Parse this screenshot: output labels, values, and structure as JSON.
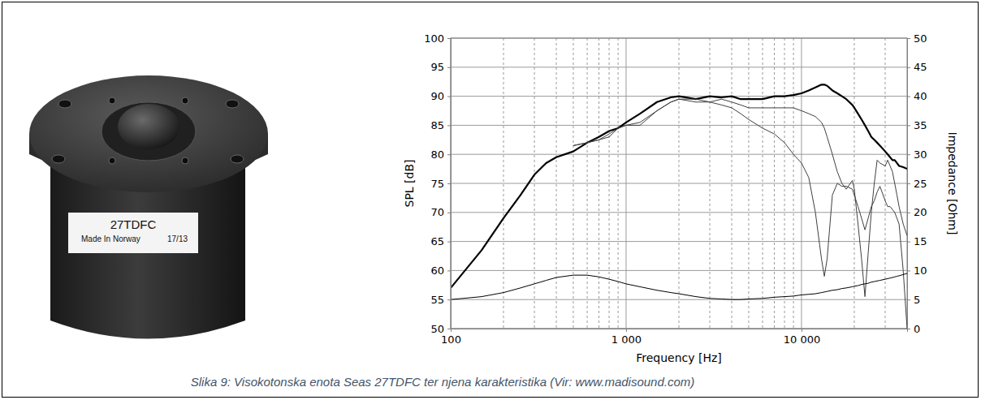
{
  "chart_data": {
    "type": "line",
    "xlabel": "Frequency [Hz]",
    "ylabel": "SPL [dB]",
    "y2label": "Impedance [Ohm]",
    "log": "x",
    "grid": true,
    "xlim": [
      100,
      40000
    ],
    "xticks": [
      100,
      {
        "value": 1000,
        "label": "1 000"
      },
      {
        "value": 10000,
        "label": "10 000"
      }
    ],
    "x_minor_grid": [
      200,
      300,
      400,
      500,
      600,
      700,
      800,
      900,
      2000,
      3000,
      4000,
      5000,
      6000,
      7000,
      8000,
      9000,
      20000,
      30000
    ],
    "ylim": [
      50,
      100
    ],
    "yticks": [
      50,
      55,
      60,
      65,
      70,
      75,
      80,
      85,
      90,
      95,
      100
    ],
    "y2lim": [
      0,
      50
    ],
    "y2ticks": [
      0,
      5,
      10,
      15,
      20,
      25,
      30,
      35,
      40,
      45,
      50
    ],
    "x": [
      100,
      150,
      200,
      250,
      300,
      350,
      400,
      500,
      600,
      700,
      800,
      900,
      1000,
      1200,
      1500,
      1800,
      2000,
      2500,
      3000,
      3500,
      4000,
      4500,
      5000,
      6000,
      7000,
      8000,
      9000,
      10000,
      11000,
      12000,
      13000,
      13500,
      14000,
      15000,
      16000,
      17000,
      18000,
      19500,
      20000,
      21000,
      22000,
      23000,
      24000,
      25000,
      26000,
      27000,
      28000,
      30000,
      31000,
      32000,
      33000,
      34000,
      35000,
      36000,
      38000,
      40000
    ],
    "series": [
      {
        "color": "#000000",
        "line_style": "thick",
        "values": [
          57,
          63.5,
          69,
          73,
          76.5,
          78.5,
          79.5,
          80.5,
          82,
          83,
          84,
          84.5,
          85.5,
          87,
          89,
          89.8,
          90,
          89.5,
          90,
          89.8,
          90,
          89.5,
          89.5,
          89.5,
          90,
          90,
          90.2,
          90.5,
          91,
          91.5,
          92,
          92,
          91.8,
          91,
          90.5,
          90,
          89.5,
          88.5,
          88,
          87,
          86,
          85,
          84,
          83,
          82.5,
          82,
          81.5,
          80.5,
          80,
          79.5,
          79,
          79,
          78.5,
          78,
          77.8,
          77.5
        ]
      },
      {
        "color": "#404040",
        "line_style": "thin",
        "values": [
          null,
          null,
          null,
          null,
          null,
          null,
          null,
          81.5,
          82,
          82.5,
          83,
          84.5,
          85,
          85,
          87.5,
          89,
          89.5,
          89.5,
          89,
          89.5,
          89,
          88.5,
          88,
          88,
          88,
          88,
          88,
          87.5,
          87,
          86.5,
          85.5,
          84.5,
          83,
          80,
          77,
          75,
          74,
          75.5,
          74,
          68,
          62,
          55.5,
          63,
          70,
          75,
          79,
          78.5,
          78,
          79,
          78,
          77,
          75,
          73,
          71,
          68,
          66
        ]
      },
      {
        "color": "#404040",
        "line_style": "thin",
        "values": [
          null,
          null,
          null,
          null,
          null,
          null,
          null,
          81.5,
          82,
          82.5,
          83.5,
          84.5,
          85,
          85.5,
          87.5,
          89,
          89.5,
          89,
          89,
          88.5,
          88,
          87,
          86,
          84.5,
          83.5,
          82,
          80,
          78.5,
          76,
          70,
          62,
          59,
          62,
          73,
          75,
          74.5,
          74.5,
          74,
          73,
          71,
          69,
          67,
          69,
          71,
          72,
          73.5,
          74.5,
          72,
          71,
          71,
          70.5,
          70,
          69,
          68,
          60,
          50
        ]
      },
      {
        "color": "#000000",
        "line_style": "thin",
        "axis": "y2",
        "values": [
          5,
          5.5,
          6.2,
          7,
          7.7,
          8.3,
          8.8,
          9.2,
          9.2,
          8.9,
          8.5,
          8.1,
          7.7,
          7.2,
          6.6,
          6.2,
          6,
          5.5,
          5.2,
          5.1,
          5,
          5,
          5.1,
          5.2,
          5.4,
          5.5,
          5.6,
          5.8,
          5.9,
          6,
          6.2,
          6.3,
          6.4,
          6.6,
          6.7,
          6.9,
          7,
          7.2,
          7.3,
          7.4,
          7.6,
          7.7,
          7.8,
          8,
          8.1,
          8.2,
          8.3,
          8.5,
          8.6,
          8.7,
          8.8,
          8.9,
          9,
          9.1,
          9.3,
          9.5
        ]
      }
    ]
  },
  "product_label": {
    "model": "27TDFC",
    "origin": "Made In Norway",
    "code": "17/13"
  },
  "caption": "Slika 9: Visokotonska enota Seas 27TDFC ter njena karakteristika (Vir: www.madisound.com)"
}
